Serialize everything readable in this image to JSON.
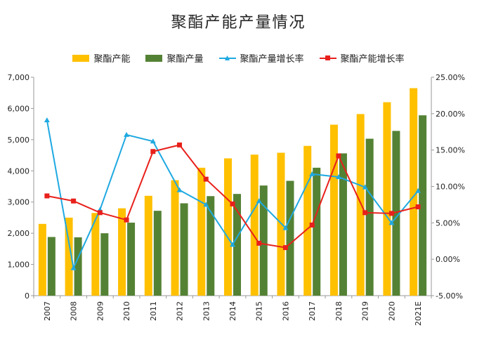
{
  "chart_data": {
    "type": "bar",
    "title": "聚酯产能产量情况",
    "categories": [
      "2007",
      "2008",
      "2009",
      "2010",
      "2011",
      "2012",
      "2013",
      "2014",
      "2015",
      "2016",
      "2017",
      "2018",
      "2019",
      "2020",
      "2021E"
    ],
    "series": [
      {
        "name": "聚酯产能",
        "type": "bar",
        "axis": "left",
        "color": "#FFC000",
        "values": [
          2300,
          2500,
          2650,
          2800,
          3200,
          3700,
          4100,
          4400,
          4520,
          4580,
          4800,
          5480,
          5820,
          6200,
          6650
        ]
      },
      {
        "name": "聚酯产量",
        "type": "bar",
        "axis": "left",
        "color": "#548235",
        "values": [
          1880,
          1870,
          2000,
          2340,
          2720,
          2960,
          3190,
          3260,
          3530,
          3680,
          4100,
          4560,
          5030,
          5280,
          5780
        ]
      },
      {
        "name": "聚酯产量增长率",
        "type": "line",
        "axis": "right",
        "color": "#1FA9E1",
        "marker": "triangle",
        "values": [
          19.1,
          -1.2,
          6.8,
          17.1,
          16.2,
          9.5,
          7.5,
          2.0,
          8.0,
          4.3,
          11.7,
          11.3,
          9.9,
          5.0,
          9.4
        ]
      },
      {
        "name": "聚酯产能增长率",
        "type": "line",
        "axis": "right",
        "color": "#E8201B",
        "marker": "square",
        "values": [
          8.7,
          8.0,
          6.4,
          5.4,
          14.8,
          15.7,
          11.0,
          7.6,
          2.2,
          1.6,
          4.7,
          14.2,
          6.4,
          6.3,
          7.2
        ]
      }
    ],
    "y_left": {
      "min": 0,
      "max": 7000,
      "step": 1000
    },
    "y_right": {
      "min": -5,
      "max": 25,
      "step": 5,
      "unit": "%"
    },
    "legend_position": "top",
    "grid": false
  }
}
